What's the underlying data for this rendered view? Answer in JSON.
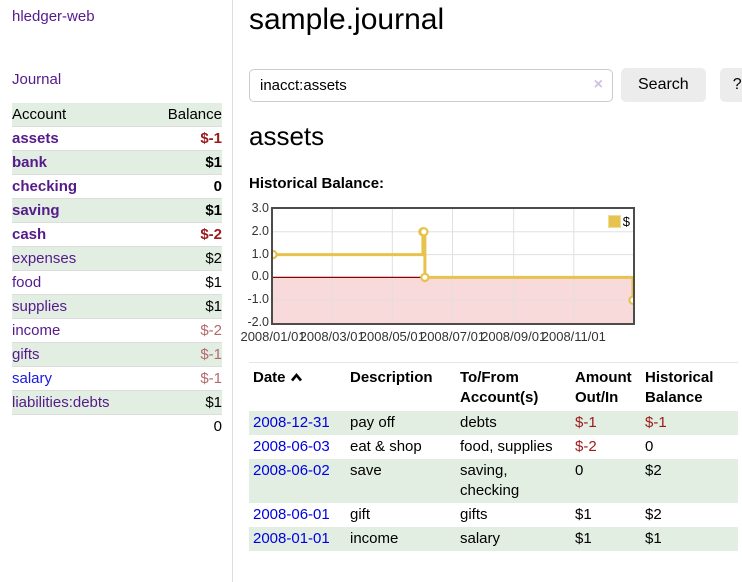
{
  "sidebar": {
    "app_title": "hledger-web",
    "journal_link": "Journal",
    "accounts": {
      "header_account": "Account",
      "header_balance": "Balance",
      "rows": [
        {
          "name": "assets",
          "balance": "$-1"
        },
        {
          "name": "bank",
          "balance": "$1"
        },
        {
          "name": "checking",
          "balance": "0"
        },
        {
          "name": "saving",
          "balance": "$1"
        },
        {
          "name": "cash",
          "balance": "$-2"
        },
        {
          "name": "expenses",
          "balance": "$2"
        },
        {
          "name": "food",
          "balance": "$1"
        },
        {
          "name": "supplies",
          "balance": "$1"
        },
        {
          "name": "income",
          "balance": "$-2"
        },
        {
          "name": "gifts",
          "balance": "$-1"
        },
        {
          "name": "salary",
          "balance": "$-1"
        },
        {
          "name": "liabilities:debts",
          "balance": "$1"
        }
      ],
      "total": "0"
    }
  },
  "main": {
    "title": "sample.journal",
    "search": {
      "value": "inacct:assets",
      "clear_icon": "×",
      "search_button": "Search",
      "help_button": "?"
    },
    "account_heading": "assets",
    "section_label": "Historical Balance:"
  },
  "chart_data": {
    "type": "line",
    "title": "Historical Balance",
    "step": true,
    "x_type": "date",
    "xlim": [
      "2008-01-01",
      "2008-12-31"
    ],
    "ylim": [
      -2,
      3
    ],
    "yticks": [
      "3.0",
      "2.0",
      "1.0",
      "0.0",
      "-1.0",
      "-2.0"
    ],
    "xticks": [
      {
        "date": "2008-01-01",
        "label": "2008/01/01"
      },
      {
        "date": "2008-03-01",
        "label": "2008/03/01"
      },
      {
        "date": "2008-05-01",
        "label": "2008/05/01"
      },
      {
        "date": "2008-07-01",
        "label": "2008/07/01"
      },
      {
        "date": "2008-09-01",
        "label": "2008/09/01"
      },
      {
        "date": "2008-11-01",
        "label": "2008/11/01"
      }
    ],
    "series": [
      {
        "name": "$",
        "color": "#e7c24c",
        "points": [
          {
            "date": "2008-01-01",
            "value": 1
          },
          {
            "date": "2008-06-01",
            "value": 2
          },
          {
            "date": "2008-06-02",
            "value": 2
          },
          {
            "date": "2008-06-03",
            "value": 0
          },
          {
            "date": "2008-12-31",
            "value": -1
          }
        ]
      }
    ],
    "negative_region_color": "#f9dada",
    "zero_line_color": "#8b0000",
    "grid_color": "#e0e0e0",
    "legend_position": "top-right",
    "grid": true
  },
  "register": {
    "headers": {
      "date": "Date",
      "description": "Description",
      "accounts": "To/From Account(s)",
      "amount": "Amount Out/In",
      "balance": "Historical Balance"
    },
    "rows": [
      {
        "date": "2008-12-31",
        "description": "pay off",
        "accounts": "debts",
        "amount": "$-1",
        "balance": "$-1"
      },
      {
        "date": "2008-06-03",
        "description": "eat & shop",
        "accounts": "food, supplies",
        "amount": "$-2",
        "balance": "0"
      },
      {
        "date": "2008-06-02",
        "description": "save",
        "accounts": "saving, checking",
        "amount": "0",
        "balance": "$2"
      },
      {
        "date": "2008-06-01",
        "description": "gift",
        "accounts": "gifts",
        "amount": "$1",
        "balance": "$2"
      },
      {
        "date": "2008-01-01",
        "description": "income",
        "accounts": "salary",
        "amount": "$1",
        "balance": "$1"
      }
    ]
  }
}
